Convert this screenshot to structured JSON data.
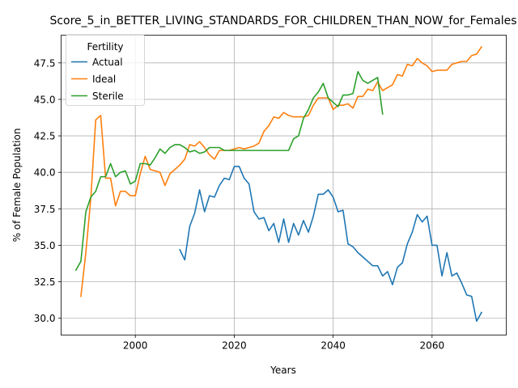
{
  "chart_data": {
    "type": "line",
    "title": "Score_5_in_BETTER_LIVING_STANDARDS_FOR_CHILDREN_THAN_NOW_for_Females",
    "xlabel": "Years",
    "ylabel": "% of Female Population",
    "xlim": [
      1985,
      2075
    ],
    "ylim": [
      28.85,
      49.4
    ],
    "xticks": [
      2000,
      2020,
      2040,
      2060
    ],
    "yticks": [
      30.0,
      32.5,
      35.0,
      37.5,
      40.0,
      42.5,
      45.0,
      47.5
    ],
    "grid": true,
    "legend": {
      "title": "Fertility",
      "location": "upper-left"
    },
    "series": [
      {
        "name": "Actual",
        "color": "#1f77b4",
        "x": [
          2009,
          2010,
          2011,
          2012,
          2013,
          2014,
          2015,
          2016,
          2017,
          2018,
          2019,
          2020,
          2021,
          2022,
          2023,
          2024,
          2025,
          2026,
          2027,
          2028,
          2029,
          2030,
          2031,
          2032,
          2033,
          2034,
          2035,
          2036,
          2037,
          2038,
          2039,
          2040,
          2041,
          2042,
          2043,
          2044,
          2045,
          2046,
          2047,
          2048,
          2049,
          2050,
          2051,
          2052,
          2053,
          2054,
          2055,
          2056,
          2057,
          2058,
          2059,
          2060,
          2061,
          2062,
          2063,
          2064,
          2065,
          2066,
          2067,
          2068,
          2069,
          2070
        ],
        "values": [
          34.7,
          34.0,
          36.3,
          37.2,
          38.8,
          37.3,
          38.4,
          38.3,
          39.1,
          39.6,
          39.5,
          40.4,
          40.4,
          39.6,
          39.2,
          37.3,
          36.8,
          36.9,
          36.0,
          36.5,
          35.2,
          36.8,
          35.2,
          36.5,
          35.7,
          36.7,
          35.9,
          37.0,
          38.5,
          38.5,
          38.8,
          38.3,
          37.3,
          37.4,
          35.1,
          34.9,
          34.5,
          34.2,
          33.9,
          33.6,
          33.6,
          32.9,
          33.2,
          32.3,
          33.5,
          33.8,
          35.1,
          35.9,
          37.1,
          36.6,
          37.0,
          35.0,
          35.0,
          32.9,
          34.5,
          32.9,
          33.1,
          32.4,
          31.6,
          31.5,
          29.8,
          30.4
        ]
      },
      {
        "name": "Ideal",
        "color": "#ff7f0e",
        "x": [
          1989,
          1990,
          1991,
          1992,
          1993,
          1994,
          1995,
          1996,
          1997,
          1998,
          1999,
          2000,
          2001,
          2002,
          2003,
          2004,
          2005,
          2006,
          2007,
          2008,
          2009,
          2010,
          2011,
          2012,
          2013,
          2014,
          2015,
          2016,
          2017,
          2018,
          2019,
          2020,
          2021,
          2022,
          2023,
          2024,
          2025,
          2026,
          2027,
          2028,
          2029,
          2030,
          2031,
          2032,
          2033,
          2034,
          2035,
          2036,
          2037,
          2038,
          2039,
          2040,
          2041,
          2042,
          2043,
          2044,
          2045,
          2046,
          2047,
          2048,
          2049,
          2050,
          2051,
          2052,
          2053,
          2054,
          2055,
          2056,
          2057,
          2058,
          2059,
          2060,
          2061,
          2062,
          2063,
          2064,
          2065,
          2066,
          2067,
          2068,
          2069,
          2070
        ],
        "values": [
          31.5,
          34.5,
          38.2,
          43.6,
          43.9,
          39.6,
          39.6,
          37.7,
          38.7,
          38.7,
          38.4,
          38.4,
          39.9,
          41.1,
          40.2,
          40.1,
          40.0,
          39.1,
          39.9,
          40.2,
          40.5,
          40.9,
          41.9,
          41.8,
          42.1,
          41.7,
          41.2,
          40.9,
          41.5,
          41.5,
          41.5,
          41.6,
          41.7,
          41.6,
          41.7,
          41.8,
          42.0,
          42.8,
          43.2,
          43.8,
          43.7,
          44.1,
          43.9,
          43.8,
          43.8,
          43.8,
          43.9,
          44.6,
          45.1,
          45.1,
          45.1,
          44.3,
          44.6,
          44.6,
          44.7,
          44.4,
          45.2,
          45.2,
          45.7,
          45.6,
          46.2,
          45.6,
          45.8,
          46.0,
          46.7,
          46.6,
          47.4,
          47.3,
          47.8,
          47.5,
          47.3,
          46.9,
          47.0,
          47.0,
          47.0,
          47.4,
          47.5,
          47.6,
          47.6,
          48.0,
          48.1,
          48.6
        ]
      },
      {
        "name": "Sterile",
        "color": "#2ca02c",
        "x": [
          1988,
          1989,
          1990,
          1991,
          1992,
          1993,
          1994,
          1995,
          1996,
          1997,
          1998,
          1999,
          2000,
          2001,
          2002,
          2003,
          2004,
          2005,
          2006,
          2007,
          2008,
          2009,
          2010,
          2011,
          2012,
          2013,
          2014,
          2015,
          2016,
          2017,
          2018,
          2019,
          2020,
          2021,
          2022,
          2023,
          2024,
          2025,
          2026,
          2027,
          2028,
          2029,
          2030,
          2031,
          2032,
          2033,
          2034,
          2035,
          2036,
          2037,
          2038,
          2039,
          2040,
          2041,
          2042,
          2043,
          2044,
          2045,
          2046,
          2047,
          2048,
          2049,
          2050
        ],
        "values": [
          33.3,
          33.9,
          37.3,
          38.3,
          38.7,
          39.7,
          39.7,
          40.6,
          39.7,
          40.0,
          40.1,
          39.2,
          39.4,
          40.6,
          40.6,
          40.5,
          41.0,
          41.6,
          41.3,
          41.7,
          41.9,
          41.9,
          41.7,
          41.4,
          41.5,
          41.3,
          41.4,
          41.7,
          41.7,
          41.7,
          41.5,
          41.5,
          41.5,
          41.5,
          41.5,
          41.5,
          41.5,
          41.5,
          41.5,
          41.5,
          41.5,
          41.5,
          41.5,
          41.5,
          42.3,
          42.5,
          43.7,
          44.3,
          45.1,
          45.5,
          46.1,
          45.1,
          44.8,
          44.5,
          45.3,
          45.3,
          45.4,
          46.9,
          46.3,
          46.1,
          46.3,
          46.5,
          44.0
        ]
      }
    ]
  }
}
